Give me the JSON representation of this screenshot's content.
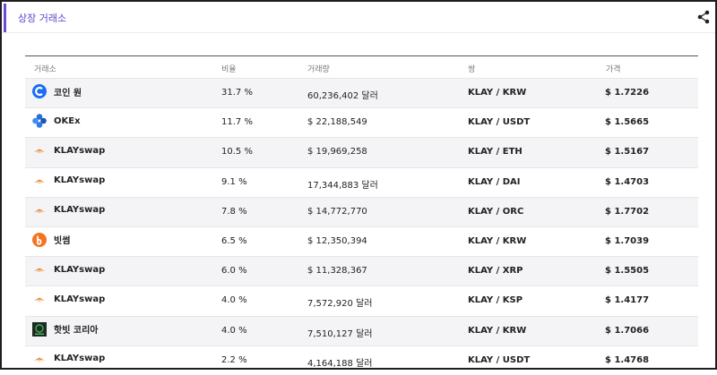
{
  "header": {
    "title": "상장 거래소",
    "share_icon": "share-icon"
  },
  "table": {
    "columns": [
      "거래소",
      "비율",
      "거래량",
      "쌍",
      "가격"
    ],
    "rows": [
      {
        "exchange": "코인 원",
        "icon": "coinone-logo-icon",
        "ratio": "31.7 %",
        "volume": "60,236,402 달러",
        "pair": "KLAY / KRW",
        "price": "$ 1.7226"
      },
      {
        "exchange": "OKEx",
        "icon": "okex-logo-icon",
        "ratio": "11.7 %",
        "volume": "$ 22,188,549",
        "pair": "KLAY / USDT",
        "price": "$ 1.5665"
      },
      {
        "exchange": "KLAYswap",
        "icon": "klayswap-logo-icon",
        "ratio": "10.5 %",
        "volume": "$ 19,969,258",
        "pair": "KLAY / ETH",
        "price": "$ 1.5167"
      },
      {
        "exchange": "KLAYswap",
        "icon": "klayswap-logo-icon",
        "ratio": "9.1 %",
        "volume": "17,344,883 달러",
        "pair": "KLAY / DAI",
        "price": "$ 1.4703"
      },
      {
        "exchange": "KLAYswap",
        "icon": "klayswap-logo-icon",
        "ratio": "7.8 %",
        "volume": "$ 14,772,770",
        "pair": "KLAY / ORC",
        "price": "$ 1.7702"
      },
      {
        "exchange": "빗썸",
        "icon": "bithumb-logo-icon",
        "ratio": "6.5 %",
        "volume": "$ 12,350,394",
        "pair": "KLAY / KRW",
        "price": "$ 1.7039"
      },
      {
        "exchange": "KLAYswap",
        "icon": "klayswap-logo-icon",
        "ratio": "6.0 %",
        "volume": "$ 11,328,367",
        "pair": "KLAY / XRP",
        "price": "$ 1.5505"
      },
      {
        "exchange": "KLAYswap",
        "icon": "klayswap-logo-icon",
        "ratio": "4.0 %",
        "volume": "7,572,920 달러",
        "pair": "KLAY / KSP",
        "price": "$ 1.4177"
      },
      {
        "exchange": "핫빗 코리아",
        "icon": "hotbit-logo-icon",
        "ratio": "4.0 %",
        "volume": "7,510,127 달러",
        "pair": "KLAY / KRW",
        "price": "$ 1.7066"
      },
      {
        "exchange": "KLAYswap",
        "icon": "klayswap-logo-icon",
        "ratio": "2.2 %",
        "volume": "4,164,188 달러",
        "pair": "KLAY / USDT",
        "price": "$ 1.4768"
      }
    ]
  }
}
